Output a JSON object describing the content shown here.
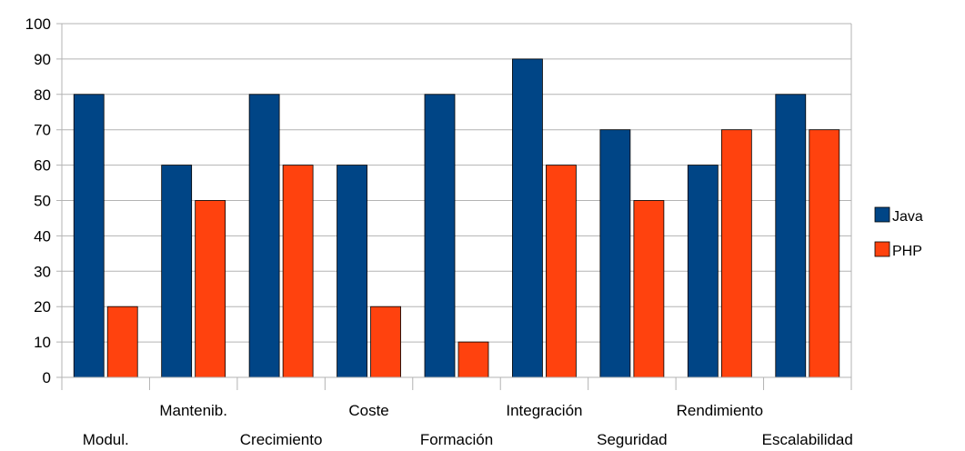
{
  "chart_data": {
    "type": "bar",
    "categories": [
      "Modul.",
      "Mantenib.",
      "Crecimiento",
      "Coste",
      "Formación",
      "Integración",
      "Seguridad",
      "Rendimiento",
      "Escalabilidad"
    ],
    "series": [
      {
        "name": "Java",
        "values": [
          80,
          60,
          80,
          60,
          80,
          90,
          70,
          60,
          80
        ],
        "color": "#004586"
      },
      {
        "name": "PHP",
        "values": [
          20,
          50,
          60,
          20,
          10,
          60,
          50,
          70,
          70
        ],
        "color": "#ff420e"
      }
    ],
    "ylim": [
      0,
      100
    ],
    "yticks": [
      0,
      10,
      20,
      30,
      40,
      50,
      60,
      70,
      80,
      90,
      100
    ],
    "grid": true,
    "legend_position": "right"
  }
}
